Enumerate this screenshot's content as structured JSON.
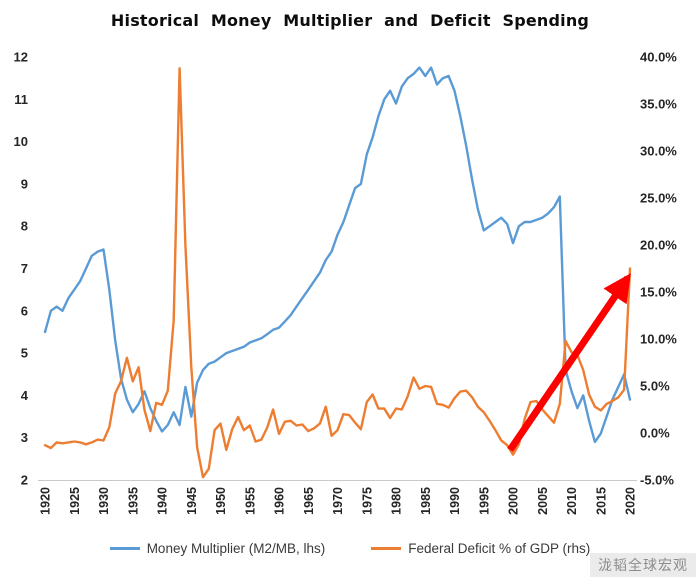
{
  "title": "Historical Money Multiplier and Deficit Spending",
  "watermark": "泷韬全球宏观",
  "legend": [
    {
      "label": "Money Multiplier (M2/MB, lhs)",
      "color": "#5B9BD5"
    },
    {
      "label": "Federal Deficit % of GDP (rhs)",
      "color": "#ED7D31"
    }
  ],
  "chart_data": {
    "type": "line",
    "title": "Historical Money Multiplier and Deficit Spending",
    "grid": false,
    "legend_position": "bottom",
    "x_label": "",
    "x_tick_values": [
      1920,
      1925,
      1930,
      1935,
      1940,
      1945,
      1950,
      1955,
      1960,
      1965,
      1970,
      1975,
      1980,
      1985,
      1990,
      1995,
      2000,
      2005,
      2010,
      2015,
      2020
    ],
    "axes": {
      "left": {
        "min": 2,
        "max": 12,
        "tick_values": [
          2,
          3,
          4,
          5,
          6,
          7,
          8,
          9,
          10,
          11,
          12
        ],
        "tick_labels": [
          "2",
          "3",
          "4",
          "5",
          "6",
          "7",
          "8",
          "9",
          "10",
          "11",
          "12"
        ]
      },
      "right": {
        "min": -5,
        "max": 40,
        "tick_values": [
          -5,
          0,
          5,
          10,
          15,
          20,
          25,
          30,
          35,
          40
        ],
        "tick_labels": [
          "-5.0%",
          "0.0%",
          "5.0%",
          "10.0%",
          "15.0%",
          "20.0%",
          "25.0%",
          "30.0%",
          "35.0%",
          "40.0%"
        ]
      }
    },
    "x": [
      1920,
      1921,
      1922,
      1923,
      1924,
      1925,
      1926,
      1927,
      1928,
      1929,
      1930,
      1931,
      1932,
      1933,
      1934,
      1935,
      1936,
      1937,
      1938,
      1939,
      1940,
      1941,
      1942,
      1943,
      1944,
      1945,
      1946,
      1947,
      1948,
      1949,
      1950,
      1951,
      1952,
      1953,
      1954,
      1955,
      1956,
      1957,
      1958,
      1959,
      1960,
      1961,
      1962,
      1963,
      1964,
      1965,
      1966,
      1967,
      1968,
      1969,
      1970,
      1971,
      1972,
      1973,
      1974,
      1975,
      1976,
      1977,
      1978,
      1979,
      1980,
      1981,
      1982,
      1983,
      1984,
      1985,
      1986,
      1987,
      1988,
      1989,
      1990,
      1991,
      1992,
      1993,
      1994,
      1995,
      1996,
      1997,
      1998,
      1999,
      2000,
      2001,
      2002,
      2003,
      2004,
      2005,
      2006,
      2007,
      2008,
      2009,
      2010,
      2011,
      2012,
      2013,
      2014,
      2015,
      2016,
      2017,
      2018,
      2019,
      2020
    ],
    "series": [
      {
        "id": "money-multiplier-line",
        "name": "Money Multiplier (M2/MB, lhs)",
        "axis": "left",
        "color": "#5B9BD5",
        "values": [
          5.5,
          6.0,
          6.1,
          6.0,
          6.3,
          6.5,
          6.7,
          7.0,
          7.3,
          7.4,
          7.45,
          6.5,
          5.3,
          4.4,
          3.9,
          3.6,
          3.8,
          4.1,
          3.7,
          3.4,
          3.15,
          3.3,
          3.6,
          3.3,
          4.2,
          3.5,
          4.3,
          4.6,
          4.75,
          4.8,
          4.9,
          5.0,
          5.05,
          5.1,
          5.15,
          5.25,
          5.3,
          5.35,
          5.45,
          5.55,
          5.6,
          5.75,
          5.9,
          6.1,
          6.3,
          6.5,
          6.7,
          6.9,
          7.2,
          7.4,
          7.8,
          8.1,
          8.5,
          8.9,
          9.0,
          9.7,
          10.1,
          10.6,
          11.0,
          11.2,
          10.9,
          11.3,
          11.5,
          11.6,
          11.75,
          11.55,
          11.75,
          11.35,
          11.5,
          11.55,
          11.2,
          10.6,
          9.9,
          9.1,
          8.4,
          7.9,
          8.0,
          8.1,
          8.2,
          8.05,
          7.6,
          8.0,
          8.1,
          8.1,
          8.15,
          8.2,
          8.3,
          8.45,
          8.7,
          4.6,
          4.1,
          3.7,
          4.0,
          3.4,
          2.9,
          3.1,
          3.5,
          3.9,
          4.2,
          4.5,
          3.9
        ]
      },
      {
        "id": "federal-deficit-line",
        "name": "Federal Deficit % of GDP (rhs)",
        "axis": "right",
        "color": "#ED7D31",
        "values": [
          -1.3,
          -1.6,
          -1.0,
          -1.1,
          -1.0,
          -0.9,
          -1.0,
          -1.2,
          -1.0,
          -0.7,
          -0.8,
          0.6,
          4.2,
          5.5,
          8.0,
          5.5,
          7.0,
          2.5,
          0.2,
          3.2,
          3.0,
          4.5,
          12.0,
          38.8,
          20.0,
          7.0,
          -1.5,
          -4.7,
          -3.8,
          0.3,
          1.0,
          -1.8,
          0.4,
          1.7,
          0.3,
          0.8,
          -0.9,
          -0.7,
          0.6,
          2.5,
          -0.1,
          1.2,
          1.3,
          0.8,
          0.9,
          0.2,
          0.5,
          1.0,
          2.8,
          -0.3,
          0.3,
          2.0,
          1.9,
          1.1,
          0.4,
          3.3,
          4.1,
          2.6,
          2.6,
          1.6,
          2.6,
          2.5,
          3.9,
          5.9,
          4.7,
          5.0,
          4.9,
          3.1,
          3.0,
          2.7,
          3.7,
          4.4,
          4.5,
          3.8,
          2.8,
          2.2,
          1.3,
          0.3,
          -0.8,
          -1.3,
          -2.3,
          -1.2,
          1.5,
          3.3,
          3.4,
          2.5,
          1.8,
          1.1,
          3.1,
          9.8,
          8.6,
          8.3,
          6.7,
          4.1,
          2.8,
          2.4,
          3.1,
          3.4,
          3.8,
          4.6,
          17.5
        ]
      }
    ],
    "annotation_arrow": {
      "color": "#FF0000",
      "axis": "right",
      "from": {
        "x": 1999.5,
        "y": -1.8
      },
      "to": {
        "x": 2019.6,
        "y": 16.5
      }
    }
  }
}
